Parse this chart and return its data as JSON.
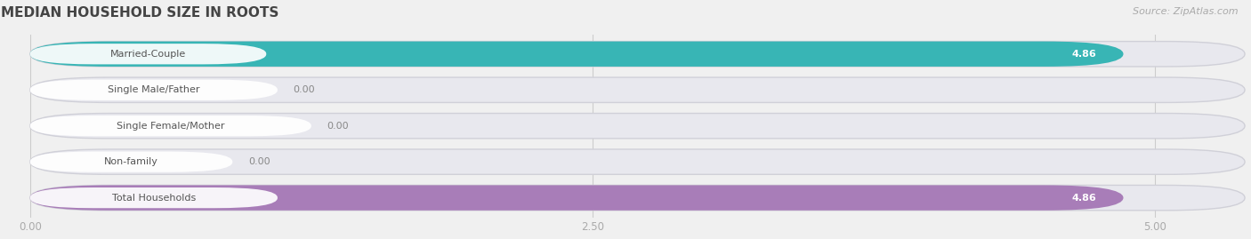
{
  "title": "MEDIAN HOUSEHOLD SIZE IN ROOTS",
  "source": "Source: ZipAtlas.com",
  "categories": [
    "Married-Couple",
    "Single Male/Father",
    "Single Female/Mother",
    "Non-family",
    "Total Households"
  ],
  "values": [
    4.86,
    0.0,
    0.0,
    0.0,
    4.86
  ],
  "bar_colors": [
    "#38b5b5",
    "#9dacd6",
    "#f08da0",
    "#f5c899",
    "#a87db8"
  ],
  "xlim_max": 5.4,
  "xticks": [
    0.0,
    2.5,
    5.0
  ],
  "xtick_labels": [
    "0.00",
    "2.50",
    "5.00"
  ],
  "background_color": "#f0f0f0",
  "title_fontsize": 11,
  "source_fontsize": 8,
  "label_fontsize": 8,
  "value_fontsize": 8
}
